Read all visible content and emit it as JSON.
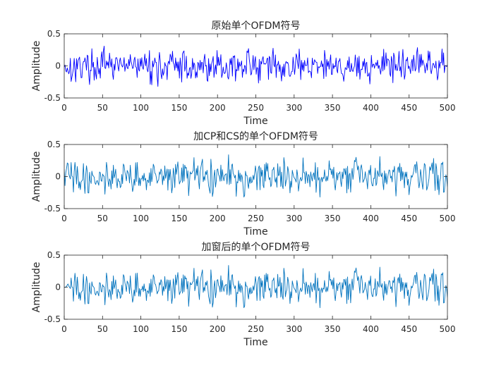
{
  "chart_data": [
    {
      "type": "line",
      "title": "原始单个OFDM符号",
      "xlabel": "Time",
      "ylabel": "Amplitude",
      "xlim": [
        0,
        500
      ],
      "ylim": [
        -0.5,
        0.5
      ],
      "xticks": [
        0,
        50,
        100,
        150,
        200,
        250,
        300,
        350,
        400,
        450,
        500
      ],
      "yticks": [
        -0.5,
        0,
        0.5
      ],
      "ytick_labels": [
        "-0.5",
        "0",
        "0.5"
      ],
      "line_color": "#0000ff",
      "series": [
        {
          "name": "原始单个OFDM符号",
          "amplitude_range": [
            -0.32,
            0.33
          ],
          "n_points": 500,
          "seed": 17,
          "rms": 0.12,
          "taper_start": 0
        }
      ]
    },
    {
      "type": "line",
      "title": "加CP和CS的单个OFDM符号",
      "xlabel": "Time",
      "ylabel": "Amplitude",
      "xlim": [
        0,
        500
      ],
      "ylim": [
        -0.5,
        0.5
      ],
      "xticks": [
        0,
        50,
        100,
        150,
        200,
        250,
        300,
        350,
        400,
        450,
        500
      ],
      "yticks": [
        -0.5,
        0,
        0.5
      ],
      "ytick_labels": [
        "-0.5",
        "0",
        "0.5"
      ],
      "line_color": "#0072bd",
      "series": [
        {
          "name": "加CP和CS的单个OFDM符号",
          "amplitude_range": [
            -0.32,
            0.34
          ],
          "n_points": 500,
          "seed": 41,
          "rms": 0.13,
          "taper_start": 0
        }
      ]
    },
    {
      "type": "line",
      "title": "加窗后的单个OFDM符号",
      "xlabel": "Time",
      "ylabel": "Amplitude",
      "xlim": [
        0,
        500
      ],
      "ylim": [
        -0.5,
        0.5
      ],
      "xticks": [
        0,
        50,
        100,
        150,
        200,
        250,
        300,
        350,
        400,
        450,
        500
      ],
      "yticks": [
        -0.5,
        0,
        0.5
      ],
      "ytick_labels": [
        "-0.5",
        "0",
        "0.5"
      ],
      "line_color": "#0072bd",
      "series": [
        {
          "name": "加窗后的单个OFDM符号",
          "amplitude_range": [
            -0.32,
            0.34
          ],
          "n_points": 500,
          "seed": 41,
          "rms": 0.13,
          "taper_start": 1
        }
      ]
    }
  ]
}
